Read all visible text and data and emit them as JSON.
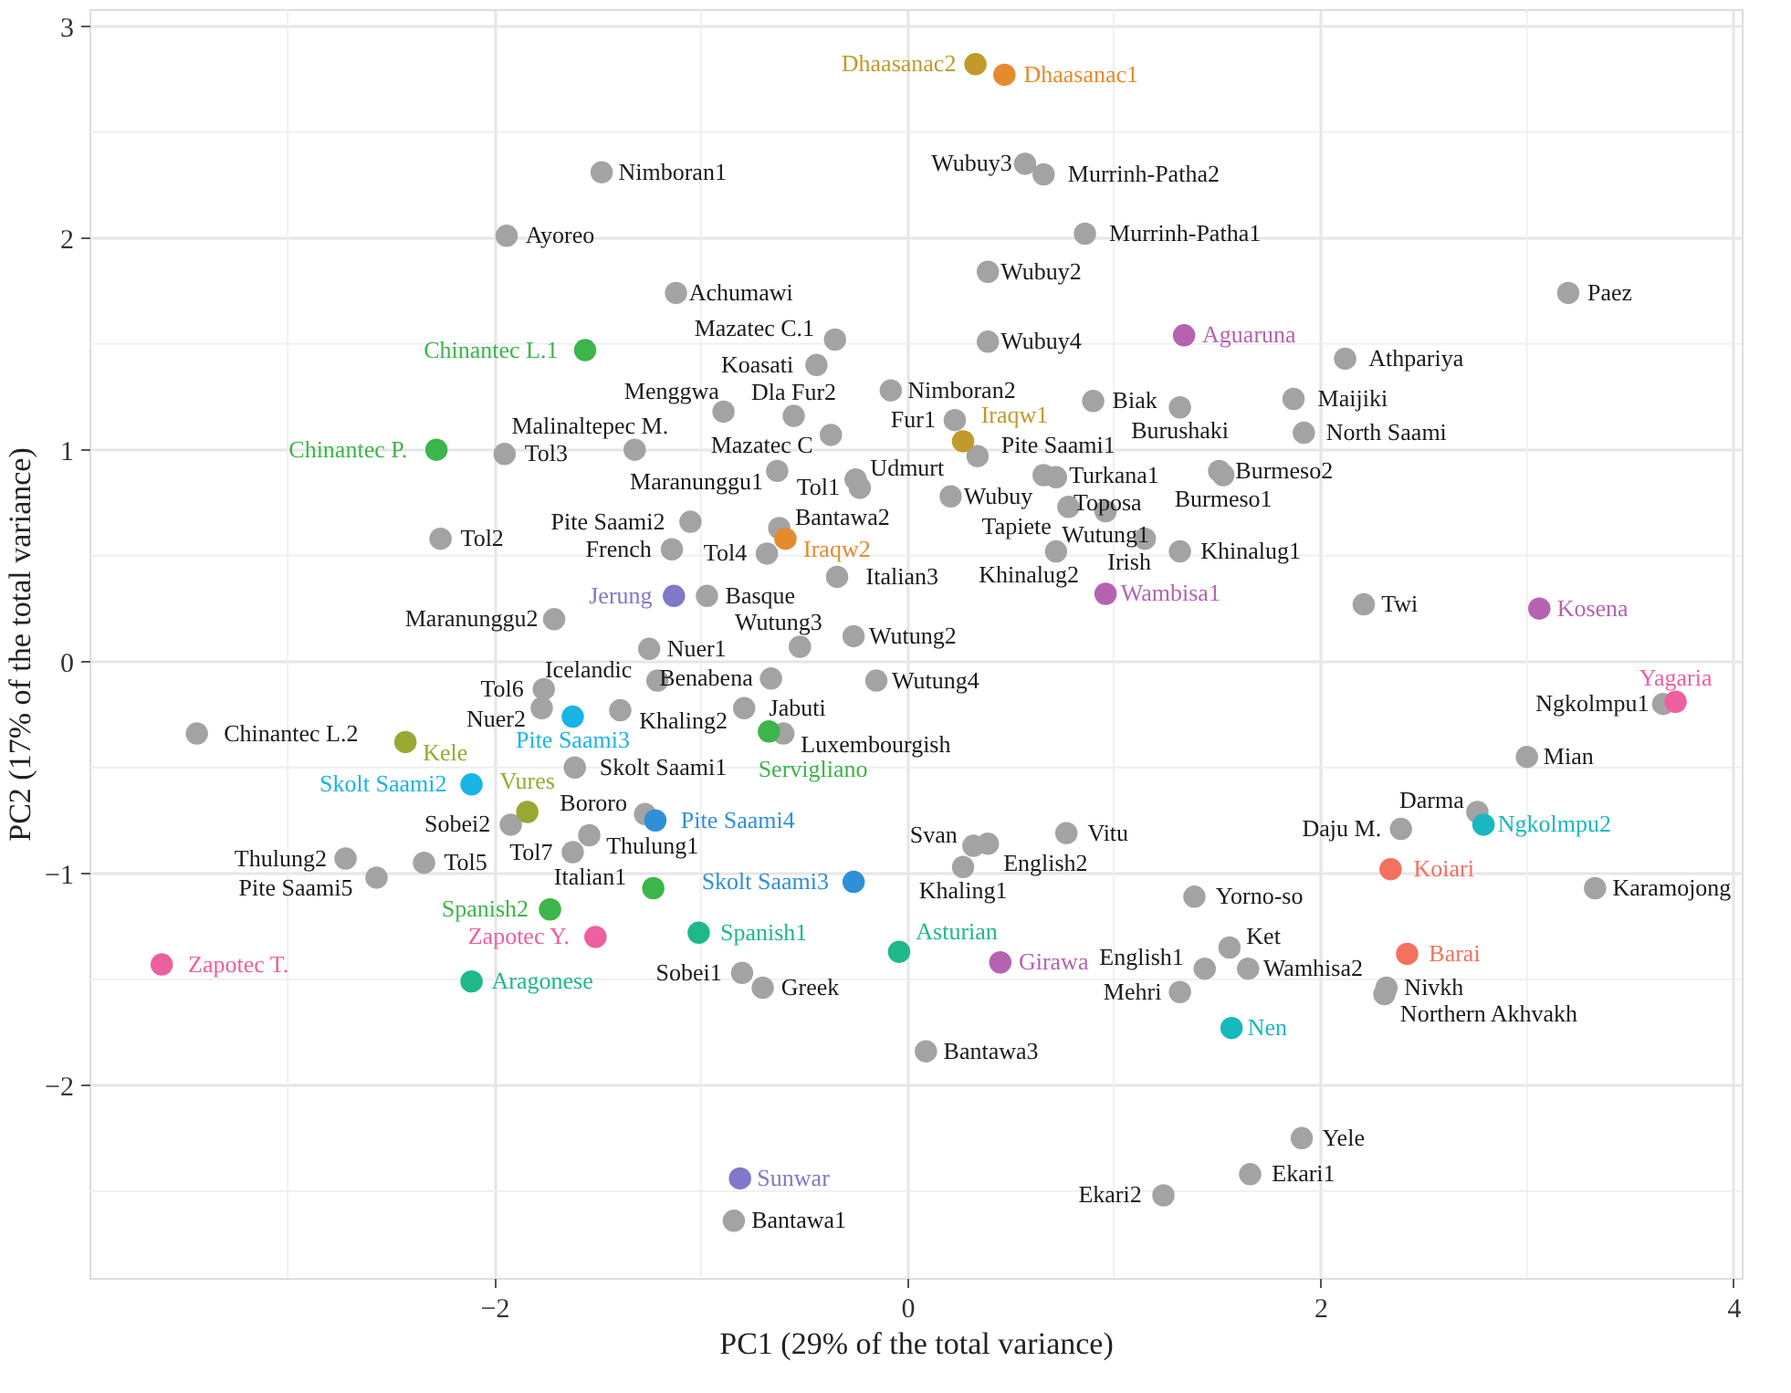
{
  "chart_data": {
    "type": "scatter",
    "xlabel": "PC1 (29% of the total variance)",
    "ylabel": "PC2 (17% of the total variance)",
    "xlim": [
      -3.96,
      4.04
    ],
    "ylim": [
      -2.91,
      3.08
    ],
    "xticks": [
      -2,
      0,
      2,
      4
    ],
    "yticks": [
      -2,
      -1,
      0,
      1,
      2,
      3
    ],
    "grid": true,
    "legend": false,
    "marker": "circle",
    "series": [
      {
        "color": "#a3a3a3",
        "x": [
          -1.48,
          -1.94,
          -1.12,
          -1.95,
          -1.32,
          -0.89,
          -2.26,
          -1.71,
          -1.05,
          -1.14,
          -0.62,
          -0.68,
          -0.97,
          -0.34,
          -0.63,
          -0.25,
          -0.23,
          -0.37,
          -0.55,
          -0.44,
          -0.35,
          -0.08,
          0.23,
          0.34,
          0.21,
          0.57,
          0.66,
          0.86,
          0.39,
          0.39,
          0.9,
          1.32,
          0.66,
          0.72,
          1.51,
          1.53,
          0.78,
          0.96,
          1.15,
          0.72,
          1.32,
          3.2,
          2.12,
          1.87,
          1.92,
          2.21,
          -1.25,
          -1.21,
          -1.76,
          -1.77,
          -1.39,
          -1.61,
          -3.44,
          -1.92,
          -1.54,
          -1.62,
          -2.34,
          -2.72,
          -2.57,
          -1.27,
          -0.8,
          -0.7,
          0.32,
          0.39,
          0.27,
          0.77,
          -0.79,
          -0.66,
          -0.52,
          -0.26,
          -0.15,
          -0.6,
          0.09,
          -0.84,
          1.24,
          1.39,
          1.56,
          1.44,
          1.32,
          1.65,
          2.32,
          2.31,
          2.39,
          2.76,
          3.33,
          3.0,
          3.66,
          1.91,
          1.66
        ],
        "values": [
          2.31,
          2.01,
          1.74,
          0.98,
          1.0,
          1.18,
          0.58,
          0.2,
          0.66,
          0.53,
          0.63,
          0.51,
          0.31,
          0.4,
          0.9,
          0.86,
          0.82,
          1.07,
          1.16,
          1.4,
          1.52,
          1.28,
          1.14,
          0.97,
          0.78,
          2.35,
          2.3,
          2.02,
          1.84,
          1.51,
          1.23,
          1.2,
          0.88,
          0.87,
          0.9,
          0.88,
          0.73,
          0.71,
          0.58,
          0.52,
          0.52,
          1.74,
          1.43,
          1.24,
          1.08,
          0.27,
          0.06,
          -0.09,
          -0.13,
          -0.22,
          -0.23,
          -0.5,
          -0.34,
          -0.77,
          -0.82,
          -0.9,
          -0.95,
          -0.93,
          -1.02,
          -0.72,
          -1.47,
          -1.54,
          -0.87,
          -0.86,
          -0.97,
          -0.81,
          -0.22,
          -0.08,
          0.07,
          0.12,
          -0.09,
          -0.34,
          -1.84,
          -2.64,
          -2.52,
          -1.11,
          -1.35,
          -1.45,
          -1.56,
          -1.45,
          -1.54,
          -1.57,
          -0.79,
          -0.71,
          -1.07,
          -0.45,
          -0.2,
          -2.25,
          -2.42
        ],
        "value_labels": [
          "Nimboran1",
          "Ayoreo",
          "Achumawi",
          "Tol3",
          "Malinaltepec M.",
          "Menggwa",
          "Tol2",
          "Maranunggu2",
          "Pite Saami2",
          "French",
          "Bantawa2",
          "Tol4",
          "Basque",
          "Italian3",
          "Maranunggu1",
          "Udmurt",
          "Tol1",
          "Mazatec C",
          "Dla Fur2",
          "Koasati",
          "Mazatec C.1",
          "Nimboran2",
          "Fur1",
          "Pite Saami1",
          "Wubuy",
          "Wubuy3",
          "Murrinh-Patha2",
          "Murrinh-Patha1",
          "Wubuy2",
          "Wubuy4",
          "Biak",
          "Burushaki",
          "Turkana1",
          "Toposa",
          "Burmeso2",
          "Burmeso1",
          "Tapiete",
          "Wutung1",
          "Irish",
          "Khinalug2",
          "Khinalug1",
          "Paez",
          "Athpariya",
          "Maijiki",
          "North Saami",
          "Twi",
          "Nuer1",
          "Icelandic",
          "Tol6",
          "Nuer2",
          "Khaling2",
          "Skolt Saami1",
          "Chinantec L.2",
          "Sobei2",
          "Thulung1",
          "Tol7",
          "Tol5",
          "Thulung2",
          "Pite Saami5",
          "Bororo",
          "Sobei1",
          "Greek",
          "Svan",
          "English2",
          "Khaling1",
          "Vitu",
          "Jabuti",
          "Benabena",
          "Wutung3",
          "Wutung2",
          "Wutung4",
          "Luxembourgish",
          "Bantawa3",
          "Bantawa1",
          "Ekari2",
          "Yorno-so",
          "Ket",
          "English1",
          "Mehri",
          "Wamhisa2",
          "Nivkh",
          "Northern Akhvakh",
          "Daju M.",
          "Darma",
          "Karamojong",
          "Mian",
          "Ngkolmpu1",
          "Yele",
          "Ekari1"
        ]
      },
      {
        "color": "#e68a2e",
        "x": [
          0.47,
          -0.59
        ],
        "values": [
          2.77,
          0.58
        ],
        "value_labels": [
          "Dhaasanac1",
          "Iraqw2"
        ]
      },
      {
        "color": "#c09a2a",
        "x": [
          0.33,
          0.27
        ],
        "values": [
          2.82,
          1.04
        ],
        "value_labels": [
          "Dhaasanac2",
          "Iraqw1"
        ]
      },
      {
        "color": "#b563b0",
        "x": [
          1.34,
          0.96,
          3.06,
          0.45
        ],
        "values": [
          1.54,
          0.32,
          0.25,
          -1.42
        ],
        "value_labels": [
          "Aguaruna",
          "Wambisa1",
          "Kosena",
          "Girawa"
        ]
      },
      {
        "color": "#ee5fa0",
        "x": [
          -3.61,
          -1.51,
          3.72
        ],
        "values": [
          -1.43,
          -1.3,
          -0.19
        ],
        "value_labels": [
          "Zapotec T.",
          "Zapotec Y.",
          "Yagaria"
        ]
      },
      {
        "color": "#3cb54a",
        "x": [
          -1.56,
          -2.28,
          -1.73,
          -0.67,
          -1.23
        ],
        "values": [
          1.47,
          1.0,
          -1.17,
          -0.33,
          -1.07
        ],
        "value_labels": [
          "Chinantec L.1",
          "Chinantec P.",
          "Spanish2",
          "Servigliano",
          null
        ]
      },
      {
        "color": "#1fb88a",
        "x": [
          -2.11,
          -1.01,
          -0.04
        ],
        "values": [
          -1.51,
          -1.28,
          -1.37
        ],
        "value_labels": [
          "Aragonese",
          "Spanish1",
          "Asturian"
        ]
      },
      {
        "color": "#99a832",
        "x": [
          -2.43,
          -1.84
        ],
        "values": [
          -0.38,
          -0.71
        ],
        "value_labels": [
          "Kele",
          "Vures"
        ]
      },
      {
        "color": "#1ab3e6",
        "x": [
          -2.11,
          -1.62
        ],
        "values": [
          -0.58,
          -0.26
        ],
        "value_labels": [
          "Skolt Saami2",
          "Pite Saami3"
        ]
      },
      {
        "color": "#2f8fd8",
        "x": [
          -1.22,
          -0.26
        ],
        "values": [
          -0.75,
          -1.04
        ],
        "value_labels": [
          "Pite Saami4",
          "Skolt Saami3"
        ]
      },
      {
        "color": "#8078c8",
        "x": [
          -1.13,
          -0.81
        ],
        "values": [
          0.31,
          -2.44
        ],
        "value_labels": [
          "Jerung",
          "Sunwar"
        ]
      },
      {
        "color": "#17b8bf",
        "x": [
          2.79,
          1.57
        ],
        "values": [
          -0.77,
          -1.73
        ],
        "value_labels": [
          "Ngkolmpu2",
          "Nen"
        ]
      },
      {
        "color": "#f4715e",
        "x": [
          2.34,
          2.42
        ],
        "values": [
          -0.98,
          -1.38
        ],
        "value_labels": [
          "Koiari",
          "Barai"
        ]
      }
    ],
    "annotations": [
      {
        "text": "Italian1",
        "x": -1.23,
        "y": -1.07
      }
    ]
  }
}
